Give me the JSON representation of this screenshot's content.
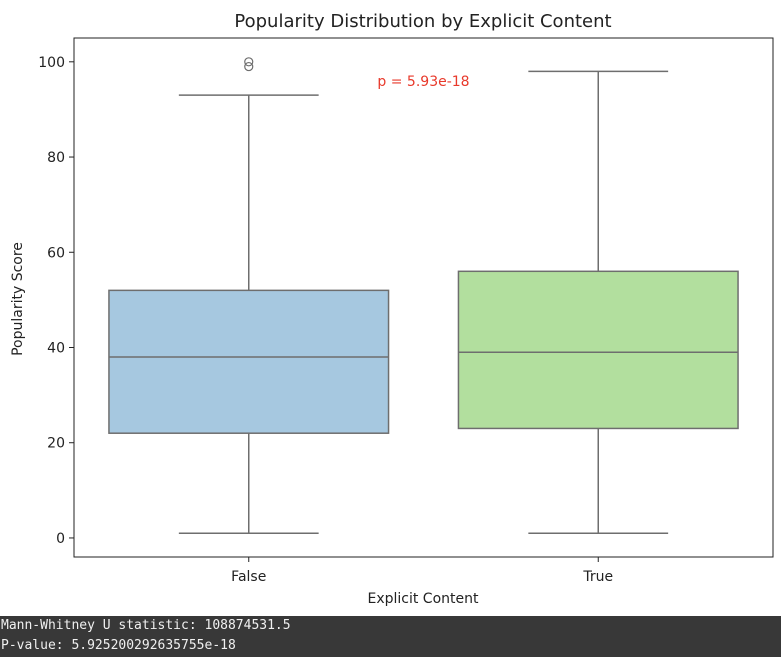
{
  "chart_data": {
    "type": "box",
    "title": "Popularity Distribution by Explicit Content",
    "xlabel": "Explicit Content",
    "ylabel": "Popularity Score",
    "ylim": [
      -4,
      105
    ],
    "yticks": [
      0,
      20,
      40,
      60,
      80,
      100
    ],
    "grid": false,
    "categories": [
      "False",
      "True"
    ],
    "boxes": [
      {
        "category": "False",
        "whisker_low": 1,
        "q1": 22,
        "median": 38,
        "q3": 52,
        "whisker_high": 93,
        "outliers": [
          99,
          100
        ],
        "color": "#a6c8e0"
      },
      {
        "category": "True",
        "whisker_low": 1,
        "q1": 23,
        "median": 39,
        "q3": 56,
        "whisker_high": 98,
        "outliers": [],
        "color": "#b2df9e"
      }
    ],
    "annotation": {
      "text": "p = 5.93e-18",
      "color": "#e8392b"
    }
  },
  "console": {
    "lines": [
      "Mann-Whitney U statistic: 108874531.5",
      "P-value: 5.925200292635755e-18"
    ]
  }
}
